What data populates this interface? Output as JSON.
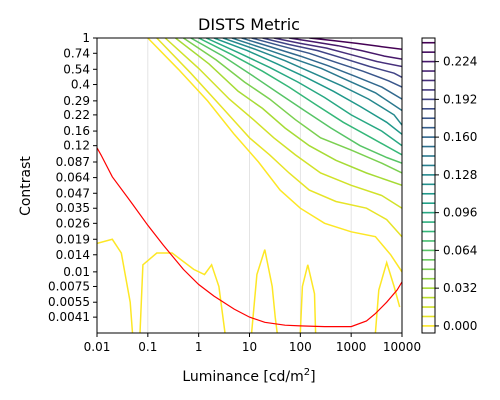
{
  "chart_data": {
    "type": "contour",
    "title": "DISTS Metric",
    "xlabel": "Luminance [cd/m",
    "xlabel_sup": "2",
    "xlabel_end": "]",
    "ylabel": "Contrast",
    "x_scale": "log",
    "y_scale": "log",
    "xlim": [
      0.01,
      10000
    ],
    "ylim": [
      0.003,
      1
    ],
    "x_ticks": [
      {
        "value": 0.01,
        "label": "0.01"
      },
      {
        "value": 0.1,
        "label": "0.1"
      },
      {
        "value": 1,
        "label": "1"
      },
      {
        "value": 10,
        "label": "10"
      },
      {
        "value": 100,
        "label": "100"
      },
      {
        "value": 1000,
        "label": "1000"
      },
      {
        "value": 10000,
        "label": "10000"
      }
    ],
    "y_ticks": [
      {
        "value": 1,
        "label": "1"
      },
      {
        "value": 0.74,
        "label": "0.74"
      },
      {
        "value": 0.54,
        "label": "0.54"
      },
      {
        "value": 0.4,
        "label": "0.4"
      },
      {
        "value": 0.29,
        "label": "0.29"
      },
      {
        "value": 0.22,
        "label": "0.22"
      },
      {
        "value": 0.16,
        "label": "0.16"
      },
      {
        "value": 0.12,
        "label": "0.12"
      },
      {
        "value": 0.087,
        "label": "0.087"
      },
      {
        "value": 0.064,
        "label": "0.064"
      },
      {
        "value": 0.047,
        "label": "0.047"
      },
      {
        "value": 0.035,
        "label": "0.035"
      },
      {
        "value": 0.026,
        "label": "0.026"
      },
      {
        "value": 0.019,
        "label": "0.019"
      },
      {
        "value": 0.014,
        "label": "0.014"
      },
      {
        "value": 0.01,
        "label": "0.01"
      },
      {
        "value": 0.0075,
        "label": "0.0075"
      },
      {
        "value": 0.0055,
        "label": "0.0055"
      },
      {
        "value": 0.0041,
        "label": "0.0041"
      }
    ],
    "grid": "vertical-only",
    "colormap": "viridis_r",
    "colorbar": {
      "range": [
        -0.006,
        0.244
      ],
      "levels": [
        0.0,
        0.008,
        0.016,
        0.024,
        0.032,
        0.04,
        0.048,
        0.056,
        0.064,
        0.072,
        0.08,
        0.088,
        0.096,
        0.104,
        0.112,
        0.12,
        0.128,
        0.136,
        0.144,
        0.152,
        0.16,
        0.168,
        0.176,
        0.184,
        0.192,
        0.2,
        0.208,
        0.216,
        0.224,
        0.232,
        0.24
      ],
      "tick_labels": [
        {
          "value": 0.0,
          "label": "0.000"
        },
        {
          "value": 0.032,
          "label": "0.032"
        },
        {
          "value": 0.064,
          "label": "0.064"
        },
        {
          "value": 0.096,
          "label": "0.096"
        },
        {
          "value": 0.128,
          "label": "0.128"
        },
        {
          "value": 0.16,
          "label": "0.160"
        },
        {
          "value": 0.192,
          "label": "0.192"
        },
        {
          "value": 0.224,
          "label": "0.224"
        }
      ]
    },
    "contour_lines": [
      {
        "level": 0.0,
        "points": [
          [
            0.1,
            1
          ],
          [
            0.4,
            0.54
          ],
          [
            1.5,
            0.29
          ],
          [
            5,
            0.15
          ],
          [
            15,
            0.087
          ],
          [
            40,
            0.05
          ],
          [
            100,
            0.035
          ],
          [
            300,
            0.026
          ],
          [
            1000,
            0.022
          ],
          [
            3000,
            0.02
          ],
          [
            6000,
            0.014
          ],
          [
            10000,
            0.01
          ]
        ]
      },
      {
        "level": 0.0,
        "points": [
          [
            0.01,
            0.0175
          ],
          [
            0.02,
            0.019
          ],
          [
            0.03,
            0.0145
          ],
          [
            0.045,
            0.0055
          ],
          [
            0.05,
            0.003
          ]
        ]
      },
      {
        "level": 0.0,
        "points": [
          [
            0.07,
            0.003
          ],
          [
            0.08,
            0.0115
          ],
          [
            0.15,
            0.0145
          ],
          [
            0.3,
            0.0145
          ],
          [
            0.8,
            0.0105
          ],
          [
            1.3,
            0.0095
          ],
          [
            1.8,
            0.0115
          ],
          [
            2.5,
            0.0075
          ],
          [
            3.3,
            0.003
          ]
        ]
      },
      {
        "level": 0.0,
        "points": [
          [
            11,
            0.003
          ],
          [
            14,
            0.0095
          ],
          [
            20,
            0.0155
          ],
          [
            28,
            0.0075
          ],
          [
            32,
            0.0041
          ],
          [
            35,
            0.003
          ]
        ]
      },
      {
        "level": 0.0,
        "points": [
          [
            100,
            0.003
          ],
          [
            110,
            0.0075
          ],
          [
            140,
            0.0115
          ],
          [
            190,
            0.0065
          ],
          [
            200,
            0.003
          ]
        ]
      },
      {
        "level": 0.0,
        "points": [
          [
            3000,
            0.003
          ],
          [
            3500,
            0.007
          ],
          [
            5000,
            0.012
          ],
          [
            7000,
            0.0075
          ],
          [
            9000,
            0.005
          ]
        ]
      },
      {
        "level": 0.008,
        "points": [
          [
            0.15,
            1
          ],
          [
            0.7,
            0.5
          ],
          [
            3,
            0.25
          ],
          [
            10,
            0.14
          ],
          [
            25,
            0.1
          ],
          [
            60,
            0.07
          ],
          [
            150,
            0.05
          ],
          [
            500,
            0.04
          ],
          [
            2000,
            0.035
          ],
          [
            5000,
            0.028
          ],
          [
            10000,
            0.02
          ]
        ]
      },
      {
        "level": 0.016,
        "points": [
          [
            0.22,
            1
          ],
          [
            1,
            0.55
          ],
          [
            4,
            0.3
          ],
          [
            12,
            0.2
          ],
          [
            30,
            0.14
          ],
          [
            80,
            0.1
          ],
          [
            250,
            0.07
          ],
          [
            1000,
            0.055
          ],
          [
            4000,
            0.045
          ],
          [
            10000,
            0.035
          ]
        ]
      },
      {
        "level": 0.032,
        "points": [
          [
            0.35,
            1
          ],
          [
            1.6,
            0.6
          ],
          [
            6,
            0.35
          ],
          [
            18,
            0.25
          ],
          [
            50,
            0.17
          ],
          [
            150,
            0.12
          ],
          [
            500,
            0.09
          ],
          [
            2000,
            0.07
          ],
          [
            10000,
            0.055
          ]
        ]
      },
      {
        "level": 0.048,
        "points": [
          [
            0.5,
            1
          ],
          [
            2.2,
            0.65
          ],
          [
            8,
            0.42
          ],
          [
            25,
            0.3
          ],
          [
            80,
            0.2
          ],
          [
            250,
            0.14
          ],
          [
            1000,
            0.11
          ],
          [
            4000,
            0.085
          ],
          [
            10000,
            0.07
          ]
        ]
      },
      {
        "level": 0.064,
        "points": [
          [
            0.7,
            1
          ],
          [
            3,
            0.7
          ],
          [
            12,
            0.47
          ],
          [
            40,
            0.33
          ],
          [
            120,
            0.24
          ],
          [
            400,
            0.17
          ],
          [
            1500,
            0.12
          ],
          [
            5000,
            0.095
          ],
          [
            10000,
            0.085
          ]
        ]
      },
      {
        "level": 0.08,
        "points": [
          [
            1,
            1
          ],
          [
            4.5,
            0.72
          ],
          [
            18,
            0.52
          ],
          [
            60,
            0.38
          ],
          [
            200,
            0.27
          ],
          [
            700,
            0.19
          ],
          [
            2500,
            0.14
          ],
          [
            10000,
            0.1
          ]
        ]
      },
      {
        "level": 0.096,
        "points": [
          [
            1.4,
            1
          ],
          [
            6,
            0.75
          ],
          [
            25,
            0.56
          ],
          [
            90,
            0.42
          ],
          [
            300,
            0.31
          ],
          [
            1000,
            0.22
          ],
          [
            4000,
            0.16
          ],
          [
            10000,
            0.12
          ]
        ]
      },
      {
        "level": 0.112,
        "points": [
          [
            2,
            1
          ],
          [
            9,
            0.78
          ],
          [
            35,
            0.6
          ],
          [
            130,
            0.46
          ],
          [
            450,
            0.35
          ],
          [
            1500,
            0.26
          ],
          [
            5000,
            0.19
          ],
          [
            10000,
            0.15
          ]
        ]
      },
      {
        "level": 0.128,
        "points": [
          [
            3,
            1
          ],
          [
            13,
            0.8
          ],
          [
            50,
            0.64
          ],
          [
            180,
            0.5
          ],
          [
            650,
            0.39
          ],
          [
            2200,
            0.3
          ],
          [
            7000,
            0.22
          ],
          [
            10000,
            0.18
          ]
        ]
      },
      {
        "level": 0.144,
        "points": [
          [
            4.5,
            1
          ],
          [
            18,
            0.82
          ],
          [
            70,
            0.67
          ],
          [
            260,
            0.55
          ],
          [
            900,
            0.43
          ],
          [
            3000,
            0.34
          ],
          [
            10000,
            0.24
          ]
        ]
      },
      {
        "level": 0.16,
        "points": [
          [
            7,
            1
          ],
          [
            26,
            0.84
          ],
          [
            100,
            0.7
          ],
          [
            350,
            0.58
          ],
          [
            1200,
            0.47
          ],
          [
            4000,
            0.38
          ],
          [
            10000,
            0.3
          ]
        ]
      },
      {
        "level": 0.176,
        "points": [
          [
            11,
            1
          ],
          [
            40,
            0.86
          ],
          [
            150,
            0.74
          ],
          [
            500,
            0.62
          ],
          [
            1700,
            0.52
          ],
          [
            5500,
            0.43
          ],
          [
            10000,
            0.38
          ]
        ]
      },
      {
        "level": 0.192,
        "points": [
          [
            18,
            1
          ],
          [
            60,
            0.88
          ],
          [
            220,
            0.78
          ],
          [
            700,
            0.67
          ],
          [
            2300,
            0.57
          ],
          [
            7000,
            0.5
          ],
          [
            10000,
            0.46
          ]
        ]
      },
      {
        "level": 0.208,
        "points": [
          [
            30,
            1
          ],
          [
            100,
            0.9
          ],
          [
            330,
            0.82
          ],
          [
            1000,
            0.72
          ],
          [
            3200,
            0.63
          ],
          [
            10000,
            0.57
          ]
        ]
      },
      {
        "level": 0.224,
        "points": [
          [
            60,
            1
          ],
          [
            180,
            0.93
          ],
          [
            550,
            0.86
          ],
          [
            1600,
            0.78
          ],
          [
            4500,
            0.7
          ],
          [
            10000,
            0.66
          ]
        ]
      },
      {
        "level": 0.24,
        "points": [
          [
            150,
            1
          ],
          [
            450,
            0.95
          ],
          [
            1300,
            0.9
          ],
          [
            3500,
            0.85
          ],
          [
            10000,
            0.8
          ]
        ]
      }
    ],
    "threshold_curve": {
      "color": "#ff0000",
      "points": [
        [
          0.01,
          0.115
        ],
        [
          0.012,
          0.1
        ],
        [
          0.02,
          0.065
        ],
        [
          0.05,
          0.038
        ],
        [
          0.1,
          0.025
        ],
        [
          0.2,
          0.017
        ],
        [
          0.5,
          0.0105
        ],
        [
          1,
          0.0078
        ],
        [
          2,
          0.0062
        ],
        [
          5,
          0.0048
        ],
        [
          10,
          0.0041
        ],
        [
          20,
          0.0037
        ],
        [
          50,
          0.0035
        ],
        [
          100,
          0.00345
        ],
        [
          300,
          0.0034
        ],
        [
          1000,
          0.0034
        ],
        [
          2000,
          0.0038
        ],
        [
          3000,
          0.0044
        ],
        [
          5000,
          0.0055
        ],
        [
          8000,
          0.007
        ],
        [
          10000,
          0.0082
        ]
      ]
    }
  }
}
